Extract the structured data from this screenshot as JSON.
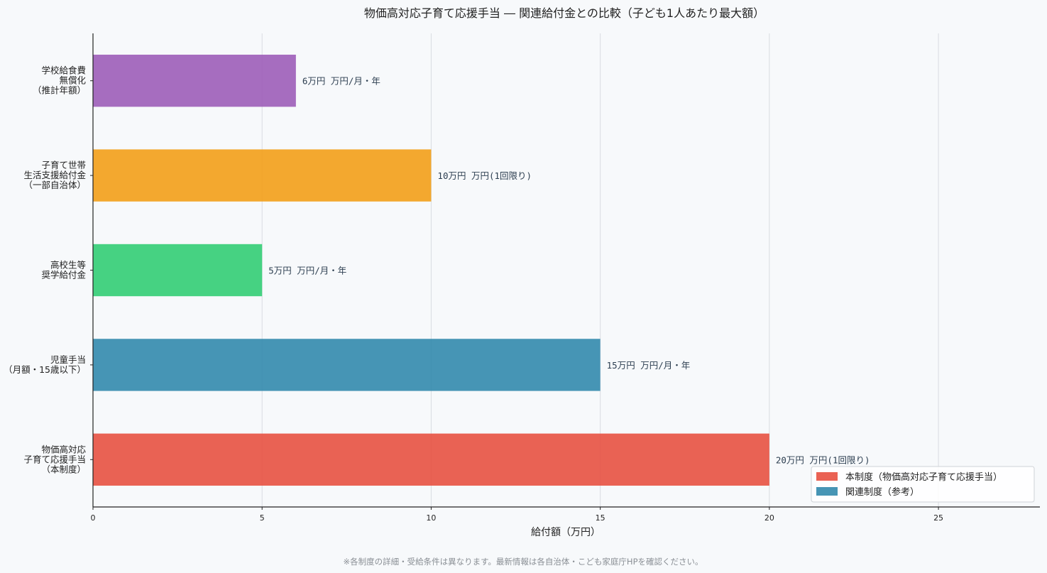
{
  "chart_data": {
    "type": "bar",
    "orientation": "horizontal",
    "title": "物価高対応子育て応援手当 ― 関連給付金との比較（子ども1人あたり最大額）",
    "xlabel": "給付額（万円）",
    "ylabel": "",
    "xlim": [
      0,
      28
    ],
    "xticks": [
      0,
      5,
      10,
      15,
      20,
      25
    ],
    "grid": true,
    "legend_position": "bottom-right",
    "categories": [
      [
        "学校給食費",
        "無償化",
        "（推計年額）"
      ],
      [
        "子育て世帯",
        "生活支援給付金",
        "（一部自治体）"
      ],
      [
        "高校生等",
        "奨学給付金"
      ],
      [
        "児童手当",
        "（月額・15歳以下）"
      ],
      [
        "物価高対応",
        "子育て応援手当",
        "（本制度）"
      ]
    ],
    "values": [
      6,
      10,
      5,
      15,
      20
    ],
    "data_labels": [
      "6万円 万円/月・年",
      "10万円 万円(1回限り)",
      "5万円 万円/月・年",
      "15万円 万円/月・年",
      "20万円 万円(1回限り)"
    ],
    "bar_colors": [
      "#9b59b6",
      "#f39c12",
      "#2ecc71",
      "#2e86ab",
      "#e74c3c"
    ],
    "legend": [
      {
        "label": "本制度（物価高対応子育て応援手当）",
        "color": "#e74c3c"
      },
      {
        "label": "関連制度（参考）",
        "color": "#2e86ab"
      }
    ],
    "footnote": "※各制度の詳細・受給条件は異なります。最新情報は各自治体・こども家庭庁HPを確認ください。"
  }
}
